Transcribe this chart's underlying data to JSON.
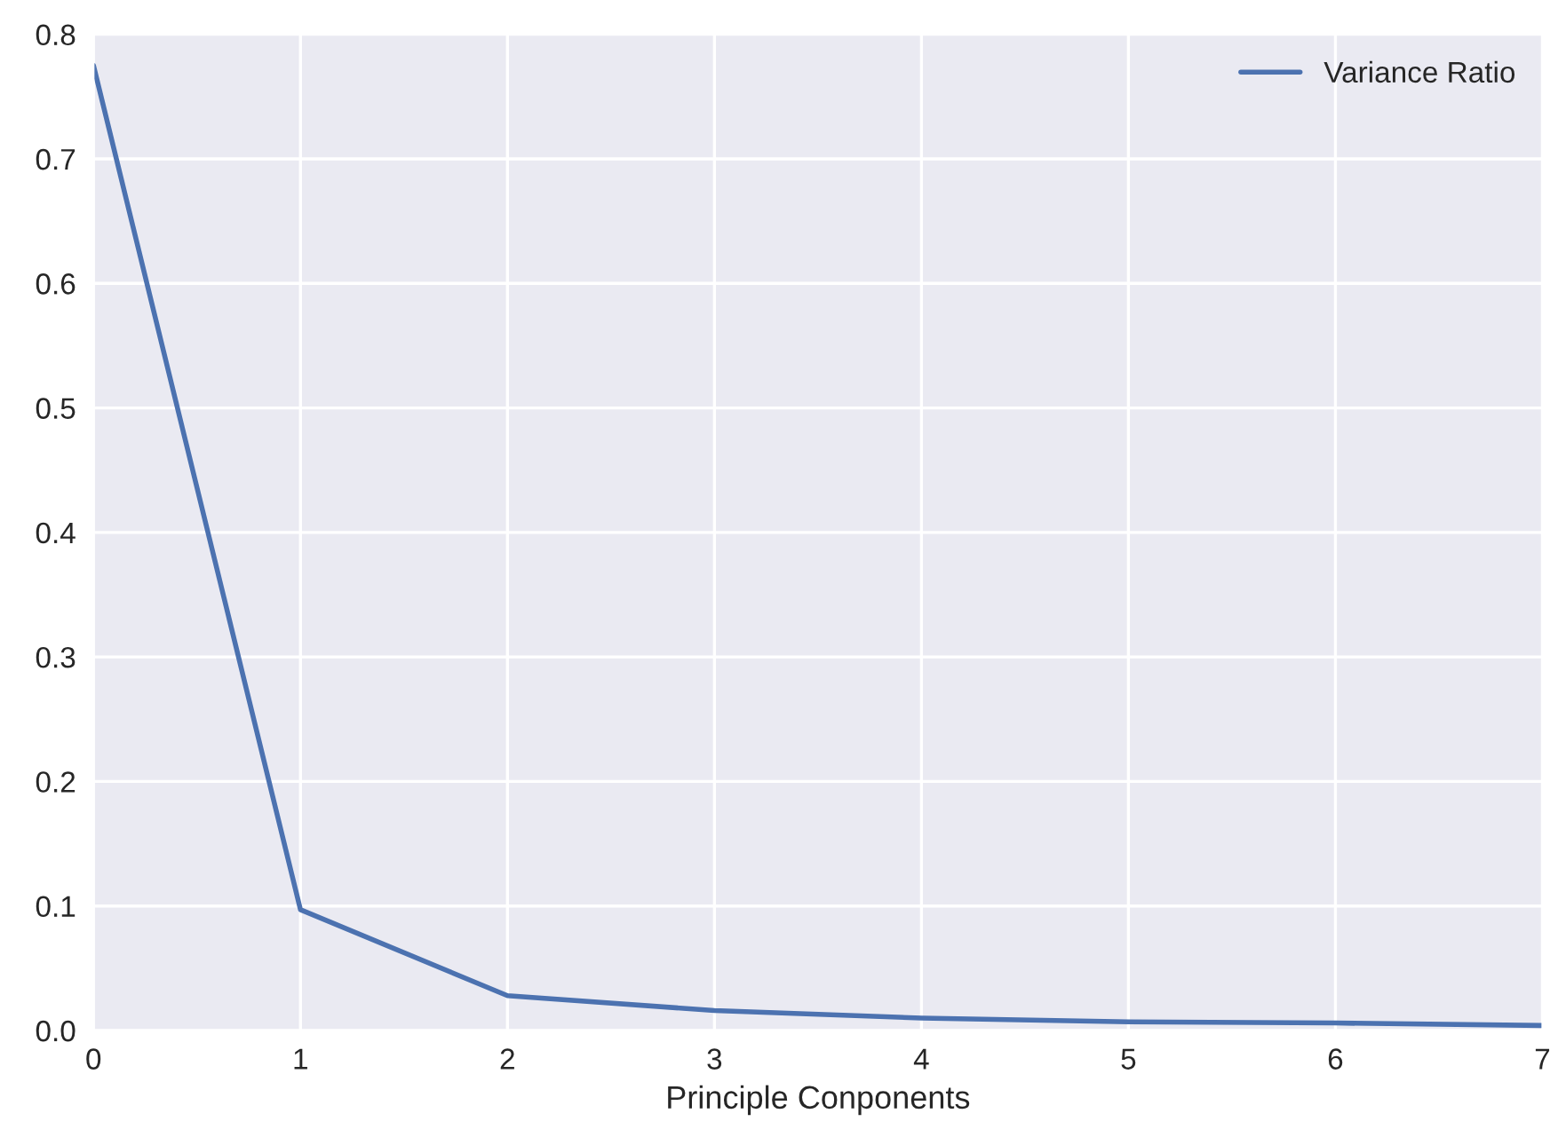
{
  "chart_data": {
    "type": "line",
    "xlabel": "Principle Conponents",
    "x": [
      0,
      1,
      2,
      3,
      4,
      5,
      6,
      7
    ],
    "series": [
      {
        "name": "Variance Ratio",
        "color": "#4c72b0",
        "values": [
          0.775,
          0.097,
          0.028,
          0.016,
          0.01,
          0.007,
          0.006,
          0.004
        ]
      }
    ],
    "xlim": [
      0,
      7
    ],
    "xticks": [
      0,
      1,
      2,
      3,
      4,
      5,
      6,
      7
    ],
    "ylim": [
      0.0,
      0.8
    ],
    "yticks": [
      {
        "value": 0,
        "label": "0.0"
      },
      0.1,
      0.2,
      0.3,
      0.4,
      0.5,
      0.6,
      0.7,
      0.8
    ],
    "grid": true,
    "legend": "top right",
    "line_style": "solid",
    "marker": "none"
  }
}
